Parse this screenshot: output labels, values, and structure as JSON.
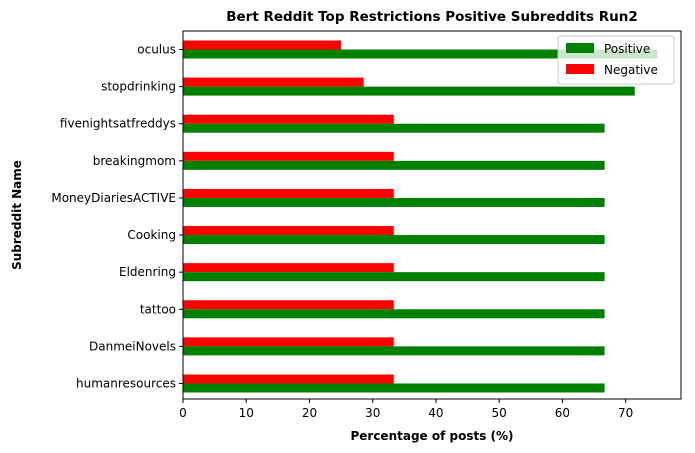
{
  "chart_data": {
    "type": "bar",
    "orientation": "horizontal",
    "title": "Bert Reddit Top Restrictions Positive Subreddits Run2",
    "xlabel": "Percentage of posts (%)",
    "ylabel": "Subreddit Name",
    "categories": [
      "humanresources",
      "DanmeiNovels",
      "tattoo",
      "Eldenring",
      "Cooking",
      "MoneyDiariesACTIVE",
      "breakingmom",
      "fivenightsatfreddys",
      "stopdrinking",
      "oculus"
    ],
    "series": [
      {
        "name": "Positive",
        "color": "#008000",
        "values": [
          66.67,
          66.67,
          66.67,
          66.67,
          66.67,
          66.67,
          66.67,
          66.67,
          71.43,
          75.0
        ]
      },
      {
        "name": "Negative",
        "color": "#ff0000",
        "values": [
          33.33,
          33.33,
          33.33,
          33.33,
          33.33,
          33.33,
          33.33,
          33.33,
          28.57,
          25.0
        ]
      }
    ],
    "xlim": [
      0,
      78.75
    ],
    "xticks": [
      0,
      10,
      20,
      30,
      40,
      50,
      60,
      70
    ],
    "grid": false,
    "legend_position": "top-right"
  }
}
